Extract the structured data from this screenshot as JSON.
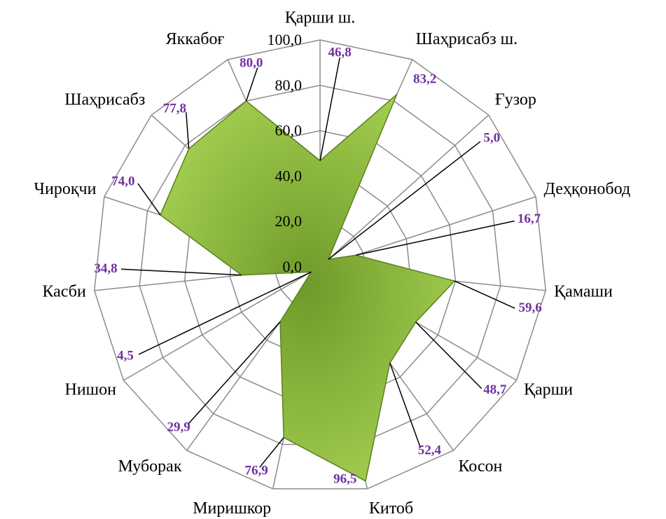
{
  "chart_data": {
    "type": "radar",
    "categories": [
      "Қарши ш.",
      "Шаҳрисабз ш.",
      "Ғузор",
      "Деҳқонобод",
      "Қамаши",
      "Қарши",
      "Косон",
      "Китоб",
      "Миришкор",
      "Муборак",
      "Нишон",
      "Касби",
      "Чироқчи",
      "Шаҳрисабз",
      "Яккабоғ"
    ],
    "values": [
      46.8,
      83.2,
      5.0,
      16.7,
      59.6,
      48.7,
      52.4,
      96.5,
      76.9,
      29.9,
      4.5,
      34.8,
      74.0,
      77.8,
      80.0
    ],
    "value_labels": [
      "46,8",
      "83,2",
      "5,0",
      "16,7",
      "59,6",
      "48,7",
      "52,4",
      "96,5",
      "76,9",
      "29,9",
      "4,5",
      "34,8",
      "74,0",
      "77,8",
      "80,0"
    ],
    "color": "#92c83e",
    "ylim": [
      0,
      100
    ],
    "yticks": [
      {
        "value": 0,
        "label": "0,0"
      },
      {
        "value": 20,
        "label": "20,0"
      },
      {
        "value": 40,
        "label": "40,0"
      },
      {
        "value": 60,
        "label": "60,0"
      },
      {
        "value": 80,
        "label": "80,0"
      },
      {
        "value": 100,
        "label": "100,0"
      }
    ],
    "grid": true
  }
}
